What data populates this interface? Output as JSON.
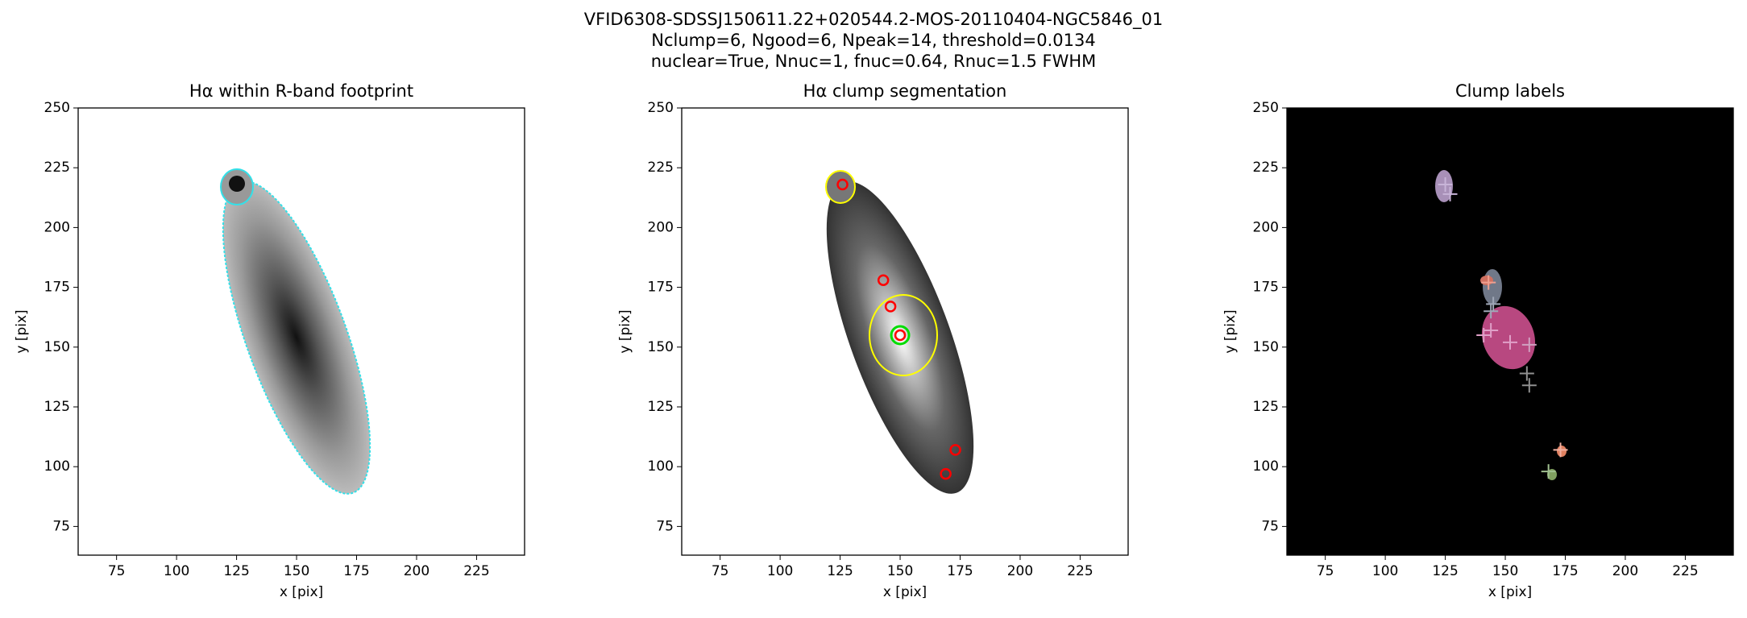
{
  "suptitle": [
    "VFID6308-SDSSJ150611.22+020544.2-MOS-20110404-NGC5846_01",
    "Nclump=6, Ngood=6, Npeak=14, threshold=0.0134",
    "nuclear=True, Nnuc=1, fnuc=0.64, Rnuc=1.5 FWHM"
  ],
  "chart_data": [
    {
      "type": "image",
      "style": "footprint",
      "title": "Hα within R-band footprint",
      "xlabel": "x [pix]",
      "ylabel": "y [pix]",
      "xlim": [
        59,
        245
      ],
      "ylim": [
        63,
        250
      ],
      "xticks": [
        75,
        100,
        125,
        150,
        175,
        200,
        225
      ],
      "yticks": [
        75,
        100,
        125,
        150,
        175,
        200,
        225,
        250
      ]
    },
    {
      "type": "image",
      "style": "segmentation",
      "title": "Hα clump segmentation",
      "xlabel": "x [pix]",
      "ylabel": "y [pix]",
      "xlim": [
        59,
        245
      ],
      "ylim": [
        63,
        250
      ],
      "xticks": [
        75,
        100,
        125,
        150,
        175,
        200,
        225
      ],
      "yticks": [
        75,
        100,
        125,
        150,
        175,
        200,
        225,
        250
      ],
      "peaks": {
        "x": [
          126,
          143,
          146,
          150,
          173,
          169
        ],
        "y": [
          218,
          178,
          167,
          155,
          107,
          97
        ],
        "color": "#ff0000"
      },
      "nucleus": {
        "x": 150,
        "y": 155,
        "color": "#00dd00"
      }
    },
    {
      "type": "image",
      "style": "labels",
      "title": "Clump labels",
      "xlabel": "x [pix]",
      "ylabel": "y [pix]",
      "xlim": [
        59,
        245
      ],
      "ylim": [
        63,
        250
      ],
      "xticks": [
        75,
        100,
        125,
        150,
        175,
        200,
        225
      ],
      "yticks": [
        75,
        100,
        125,
        150,
        175,
        200,
        225,
        250
      ],
      "crosses": {
        "x": [
          125,
          127,
          143,
          145,
          144,
          144,
          141,
          152,
          160,
          159,
          160,
          173,
          168
        ],
        "y": [
          218,
          214,
          177,
          168,
          165,
          157,
          155,
          152,
          151,
          139,
          134,
          107,
          98
        ],
        "colors": [
          "#c8b4d8",
          "#c8b4d8",
          "#f0a090",
          "#a0a8b8",
          "#a0a8b8",
          "#e0a0c8",
          "#e0a0c8",
          "#e0a0c8",
          "#d0a0c0",
          "#909090",
          "#909090",
          "#f0b0a0",
          "#a0c090"
        ]
      }
    }
  ]
}
